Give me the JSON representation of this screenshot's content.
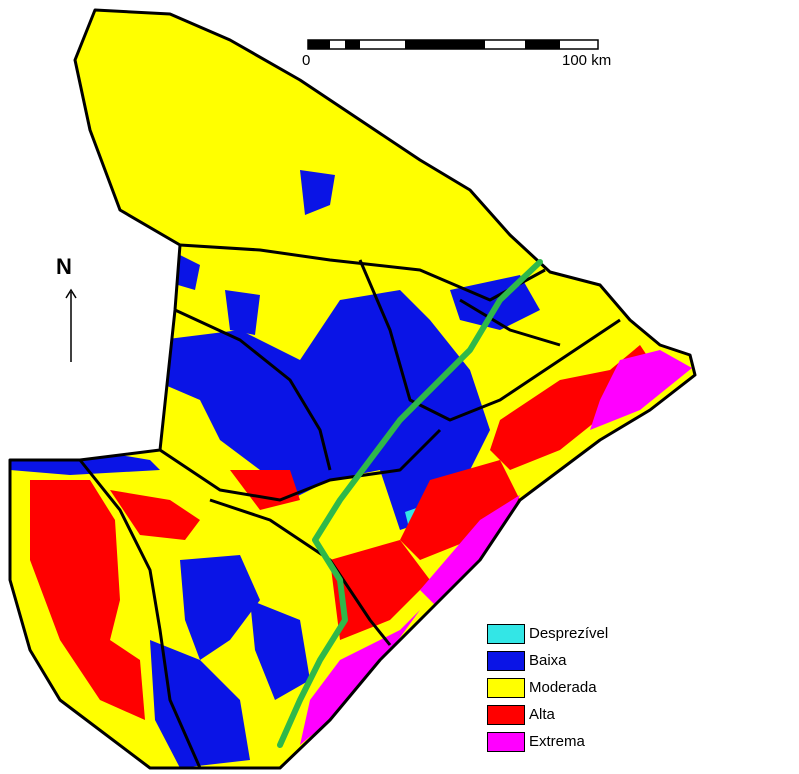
{
  "scale_bar": {
    "start_label": "0",
    "end_label": "100 km"
  },
  "north_arrow": {
    "label": "N"
  },
  "legend": [
    {
      "label": "Desprezível",
      "color": "#33e6e6"
    },
    {
      "label": "Baixa",
      "color": "#0a14e6"
    },
    {
      "label": "Moderada",
      "color": "#ffff00"
    },
    {
      "label": "Alta",
      "color": "#ff0000"
    },
    {
      "label": "Extrema",
      "color": "#ff00ff"
    }
  ],
  "features": {
    "river_color": "#2fb84a",
    "border_color": "#000000"
  }
}
